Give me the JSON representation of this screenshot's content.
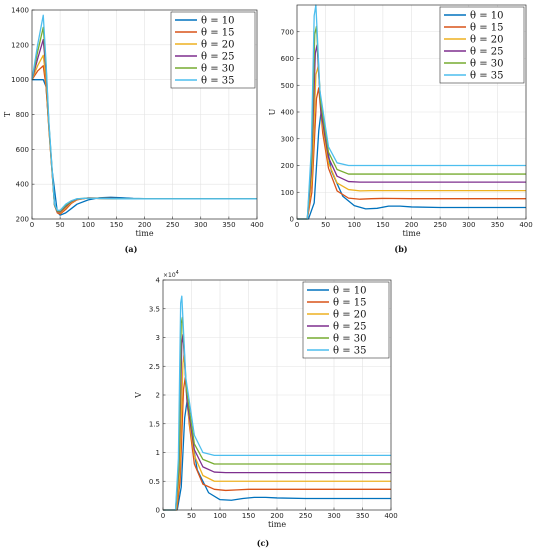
{
  "chart_data": [
    {
      "panel": "(a)",
      "type": "line",
      "xlabel": "time",
      "ylabel": "T",
      "xlim": [
        0,
        400
      ],
      "ylim": [
        200,
        1400
      ],
      "xticks": [
        "0",
        "50",
        "100",
        "150",
        "200",
        "250",
        "300",
        "350",
        "400"
      ],
      "yticks": [
        "200",
        "400",
        "600",
        "800",
        "1000",
        "1200",
        "1400"
      ],
      "grid": true,
      "legend": "top-right",
      "series": [
        {
          "name": "θ = 10",
          "color": "#0072BD",
          "x": [
            0,
            20,
            25,
            35,
            45,
            50,
            60,
            70,
            80,
            100,
            120,
            140,
            160,
            180,
            200,
            250,
            300,
            400
          ],
          "y": [
            1000,
            1000,
            960,
            500,
            240,
            222,
            235,
            260,
            285,
            310,
            322,
            325,
            322,
            318,
            317,
            316,
            316,
            316
          ]
        },
        {
          "name": "θ = 15",
          "color": "#D95319",
          "x": [
            0,
            10,
            20,
            25,
            30,
            40,
            45,
            50,
            60,
            70,
            80,
            100,
            120,
            140,
            160,
            200,
            250,
            300,
            400
          ],
          "y": [
            1000,
            1050,
            1080,
            960,
            720,
            280,
            235,
            228,
            255,
            290,
            310,
            322,
            320,
            318,
            317,
            316,
            316,
            316,
            316
          ]
        },
        {
          "name": "θ = 20",
          "color": "#EDB120",
          "x": [
            0,
            10,
            20,
            25,
            30,
            40,
            45,
            50,
            60,
            70,
            80,
            100,
            120,
            140,
            160,
            200,
            250,
            300,
            400
          ],
          "y": [
            1000,
            1080,
            1140,
            1000,
            720,
            280,
            240,
            235,
            265,
            295,
            312,
            320,
            318,
            317,
            316,
            316,
            316,
            316,
            316
          ]
        },
        {
          "name": "θ = 25",
          "color": "#7E2F8E",
          "x": [
            0,
            10,
            20,
            25,
            30,
            40,
            45,
            50,
            60,
            70,
            80,
            100,
            120,
            140,
            160,
            200,
            250,
            300,
            400
          ],
          "y": [
            1000,
            1120,
            1230,
            1050,
            740,
            280,
            242,
            240,
            272,
            300,
            314,
            320,
            318,
            317,
            316,
            316,
            316,
            316,
            316
          ]
        },
        {
          "name": "θ = 30",
          "color": "#77AC30",
          "x": [
            0,
            10,
            20,
            25,
            30,
            40,
            45,
            50,
            60,
            70,
            80,
            100,
            120,
            140,
            160,
            200,
            250,
            300,
            400
          ],
          "y": [
            1000,
            1160,
            1300,
            1080,
            750,
            282,
            245,
            245,
            278,
            303,
            316,
            320,
            318,
            317,
            316,
            316,
            316,
            316,
            316
          ]
        },
        {
          "name": "θ = 35",
          "color": "#4DBEEE",
          "x": [
            0,
            10,
            20,
            25,
            30,
            40,
            45,
            50,
            60,
            70,
            80,
            100,
            120,
            140,
            160,
            200,
            250,
            300,
            400
          ],
          "y": [
            1000,
            1200,
            1370,
            1100,
            760,
            285,
            250,
            250,
            285,
            305,
            316,
            320,
            318,
            317,
            316,
            316,
            316,
            316,
            316
          ]
        }
      ]
    },
    {
      "panel": "(b)",
      "type": "line",
      "xlabel": "time",
      "ylabel": "U",
      "xlim": [
        0,
        400
      ],
      "ylim": [
        0,
        800
      ],
      "xticks": [
        "0",
        "50",
        "100",
        "150",
        "200",
        "250",
        "300",
        "350",
        "400"
      ],
      "yticks": [
        "0",
        "100",
        "200",
        "300",
        "400",
        "500",
        "600",
        "700"
      ],
      "grid": true,
      "legend": "top-right",
      "series": [
        {
          "name": "θ = 10",
          "color": "#0072BD",
          "x": [
            0,
            20,
            30,
            38,
            42,
            50,
            60,
            80,
            100,
            120,
            140,
            160,
            180,
            200,
            250,
            300,
            400
          ],
          "y": [
            0,
            0,
            60,
            330,
            400,
            300,
            180,
            85,
            50,
            38,
            40,
            48,
            48,
            45,
            43,
            43,
            43
          ]
        },
        {
          "name": "θ = 15",
          "color": "#D95319",
          "x": [
            0,
            18,
            26,
            34,
            38,
            45,
            55,
            70,
            90,
            110,
            130,
            150,
            200,
            300,
            400
          ],
          "y": [
            0,
            0,
            100,
            450,
            490,
            320,
            190,
            105,
            78,
            74,
            76,
            77,
            76,
            76,
            76
          ]
        },
        {
          "name": "θ = 20",
          "color": "#EDB120",
          "x": [
            0,
            18,
            26,
            33,
            37,
            44,
            55,
            70,
            90,
            110,
            130,
            200,
            300,
            400
          ],
          "y": [
            0,
            0,
            150,
            540,
            570,
            360,
            210,
            135,
            110,
            105,
            106,
            106,
            106,
            106
          ]
        },
        {
          "name": "θ = 25",
          "color": "#7E2F8E",
          "x": [
            0,
            18,
            25,
            32,
            35,
            42,
            55,
            70,
            90,
            110,
            130,
            200,
            300,
            400
          ],
          "y": [
            0,
            0,
            180,
            620,
            650,
            400,
            230,
            160,
            140,
            138,
            138,
            138,
            138,
            138
          ]
        },
        {
          "name": "θ = 30",
          "color": "#77AC30",
          "x": [
            0,
            18,
            25,
            31,
            34,
            41,
            55,
            70,
            90,
            110,
            130,
            200,
            300,
            400
          ],
          "y": [
            0,
            0,
            220,
            690,
            720,
            440,
            250,
            185,
            168,
            168,
            168,
            168,
            168,
            168
          ]
        },
        {
          "name": "θ = 35",
          "color": "#4DBEEE",
          "x": [
            0,
            18,
            25,
            30,
            33,
            40,
            55,
            70,
            90,
            110,
            130,
            200,
            300,
            400
          ],
          "y": [
            0,
            0,
            260,
            760,
            800,
            480,
            270,
            210,
            200,
            200,
            200,
            200,
            200,
            200
          ]
        }
      ]
    },
    {
      "panel": "(c)",
      "type": "line",
      "xlabel": "time",
      "ylabel": "V",
      "multiplier": "×10",
      "multiplier_exp": "4",
      "xlim": [
        0,
        400
      ],
      "ylim": [
        0,
        4
      ],
      "xticks": [
        "0",
        "50",
        "100",
        "150",
        "200",
        "250",
        "300",
        "350",
        "400"
      ],
      "yticks": [
        "0",
        "0.5",
        "1",
        "1.5",
        "2",
        "2.5",
        "3",
        "3.5",
        "4"
      ],
      "grid": true,
      "legend": "top-right",
      "series": [
        {
          "name": "θ = 10",
          "color": "#0072BD",
          "x": [
            0,
            25,
            32,
            38,
            42,
            50,
            60,
            80,
            100,
            120,
            140,
            160,
            180,
            200,
            250,
            300,
            400
          ],
          "y": [
            0,
            0,
            0.4,
            1.6,
            1.88,
            1.3,
            0.7,
            0.3,
            0.18,
            0.17,
            0.2,
            0.22,
            0.22,
            0.21,
            0.2,
            0.2,
            0.2
          ]
        },
        {
          "name": "θ = 15",
          "color": "#D95319",
          "x": [
            0,
            24,
            30,
            36,
            39,
            46,
            55,
            70,
            90,
            110,
            130,
            150,
            200,
            300,
            400
          ],
          "y": [
            0,
            0,
            0.5,
            2.1,
            2.3,
            1.5,
            0.8,
            0.45,
            0.36,
            0.34,
            0.35,
            0.36,
            0.36,
            0.36,
            0.36
          ]
        },
        {
          "name": "θ = 20",
          "color": "#EDB120",
          "x": [
            0,
            23,
            29,
            35,
            37,
            44,
            55,
            70,
            90,
            110,
            130,
            200,
            300,
            400
          ],
          "y": [
            0,
            0,
            0.6,
            2.55,
            2.7,
            1.7,
            0.95,
            0.6,
            0.5,
            0.5,
            0.5,
            0.5,
            0.5,
            0.5
          ]
        },
        {
          "name": "θ = 25",
          "color": "#7E2F8E",
          "x": [
            0,
            22,
            28,
            33,
            35,
            42,
            55,
            70,
            90,
            110,
            130,
            200,
            300,
            400
          ],
          "y": [
            0,
            0,
            0.7,
            2.9,
            3.05,
            1.9,
            1.05,
            0.75,
            0.66,
            0.65,
            0.65,
            0.65,
            0.65,
            0.65
          ]
        },
        {
          "name": "θ = 30",
          "color": "#77AC30",
          "x": [
            0,
            22,
            28,
            32,
            34,
            41,
            55,
            70,
            90,
            110,
            130,
            200,
            300,
            400
          ],
          "y": [
            0,
            0,
            0.8,
            3.25,
            3.35,
            2.1,
            1.15,
            0.88,
            0.8,
            0.8,
            0.8,
            0.8,
            0.8,
            0.8
          ]
        },
        {
          "name": "θ = 35",
          "color": "#4DBEEE",
          "x": [
            0,
            22,
            27,
            31,
            33,
            40,
            55,
            70,
            90,
            110,
            130,
            200,
            300,
            400
          ],
          "y": [
            0,
            0,
            0.9,
            3.6,
            3.72,
            2.3,
            1.3,
            1.0,
            0.95,
            0.95,
            0.95,
            0.95,
            0.95,
            0.95
          ]
        }
      ]
    }
  ]
}
